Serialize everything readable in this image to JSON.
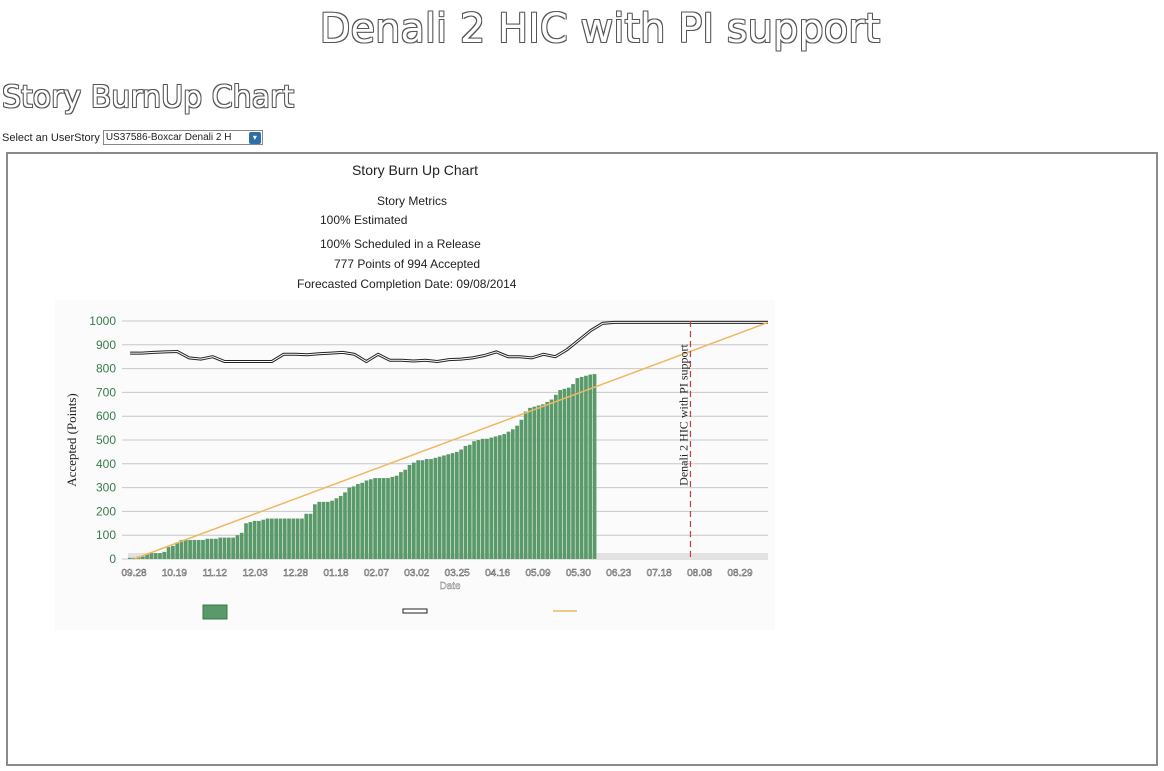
{
  "page": {
    "title": "Denali 2 HIC with PI support",
    "section_title": "Story BurnUp Chart",
    "selector_label": "Select an UserStory",
    "selector_value": "US37586-Boxcar Denali 2 H"
  },
  "metrics": {
    "heading": "Story Metrics",
    "estimated": "100% Estimated",
    "scheduled": "100% Scheduled in a Release",
    "accepted": "777 Points of 994 Accepted",
    "forecast": "Forecasted Completion Date: 09/08/2014"
  },
  "chart_data": {
    "type": "bar",
    "title": "Story Burn Up Chart",
    "ylabel": "Accepted (Points)",
    "xlabel": "Date",
    "ylim": [
      0,
      1000
    ],
    "y_ticks": [
      0,
      100,
      200,
      300,
      400,
      500,
      600,
      700,
      800,
      900,
      1000
    ],
    "x_tick_labels": [
      "09.28",
      "10.19",
      "11.12",
      "12.03",
      "12.28",
      "01.18",
      "02.07",
      "03.02",
      "03.25",
      "04.16",
      "05.09",
      "05.30",
      "06.23",
      "07.18",
      "08.08",
      "08.29"
    ],
    "grid": true,
    "colors": {
      "accepted": "#5a9a6a",
      "scope": "#222222",
      "ideal": "#f0b860",
      "release_marker": "#c04040"
    },
    "release_marker": {
      "label": "Denali 2 HIC with PI support",
      "position_fraction": 0.88
    },
    "series": [
      {
        "kind": "bar",
        "values": [
          5,
          5,
          10,
          10,
          20,
          25,
          25,
          25,
          30,
          50,
          55,
          70,
          80,
          80,
          80,
          80,
          80,
          80,
          85,
          85,
          85,
          90,
          90,
          90,
          90,
          100,
          110,
          150,
          155,
          160,
          160,
          165,
          170,
          170,
          170,
          170,
          170,
          170,
          170,
          170,
          170,
          190,
          190,
          230,
          240,
          240,
          240,
          245,
          255,
          265,
          280,
          300,
          305,
          315,
          320,
          330,
          335,
          340,
          340,
          340,
          340,
          345,
          350,
          365,
          375,
          395,
          405,
          415,
          415,
          420,
          420,
          425,
          430,
          435,
          440,
          445,
          450,
          460,
          475,
          480,
          495,
          500,
          505,
          505,
          510,
          515,
          520,
          525,
          535,
          545,
          560,
          585,
          620,
          635,
          640,
          645,
          650,
          660,
          670,
          690,
          710,
          715,
          720,
          735,
          760,
          765,
          770,
          775,
          777
        ]
      },
      {
        "kind": "line",
        "values": [
          865,
          865,
          868,
          870,
          872,
          845,
          840,
          850,
          830,
          830,
          830,
          830,
          830,
          860,
          860,
          858,
          862,
          865,
          868,
          860,
          830,
          860,
          835,
          835,
          832,
          835,
          830,
          838,
          840,
          845,
          855,
          870,
          850,
          850,
          845,
          860,
          850,
          880,
          920,
          960,
          990,
          994,
          994,
          994,
          994,
          994,
          994,
          994,
          994,
          994,
          994,
          994,
          994,
          994,
          994
        ]
      },
      {
        "kind": "line",
        "values": [
          0,
          994
        ]
      }
    ]
  }
}
